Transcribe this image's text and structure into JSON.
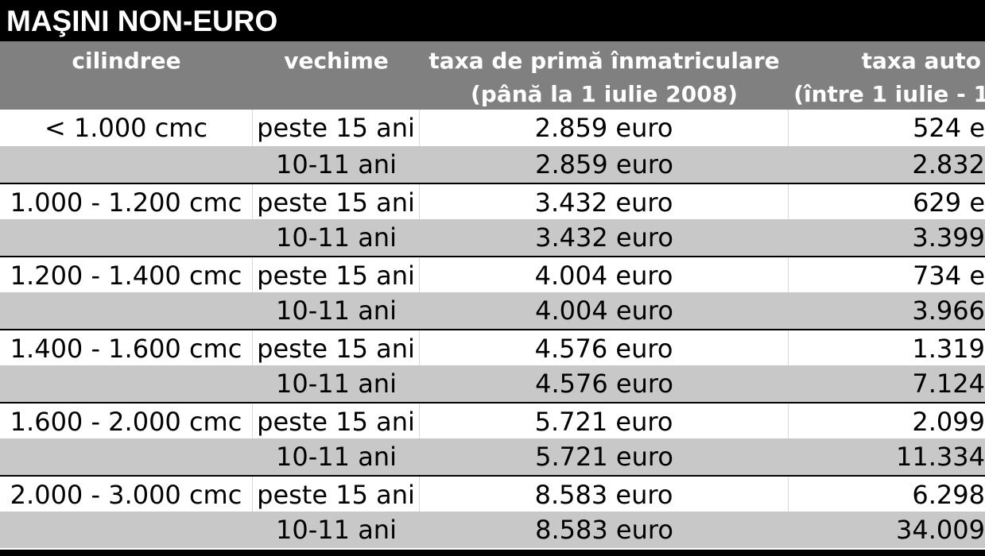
{
  "title": "MAŞINI NON-EURO",
  "headers": [
    {
      "line1": "cilindree",
      "line2": ""
    },
    {
      "line1": "vechime",
      "line2": ""
    },
    {
      "line1": "taxa de primă înmatriculare",
      "line2": "(până la 1 iulie 2008)"
    },
    {
      "line1": "taxa auto",
      "line2": "(între 1 iulie - 1"
    }
  ],
  "rows": [
    {
      "cilindree": "< 1.000 cmc",
      "vechime": "peste 15 ani",
      "taxa1": "2.859 euro",
      "taxa2": "524 e"
    },
    {
      "cilindree": "",
      "vechime": "10-11 ani",
      "taxa1": "2.859 euro",
      "taxa2": "2.832"
    },
    {
      "cilindree": "1.000 - 1.200 cmc",
      "vechime": "peste 15 ani",
      "taxa1": "3.432 euro",
      "taxa2": "629 e"
    },
    {
      "cilindree": "",
      "vechime": "10-11 ani",
      "taxa1": "3.432 euro",
      "taxa2": "3.399"
    },
    {
      "cilindree": "1.200 - 1.400 cmc",
      "vechime": "peste 15 ani",
      "taxa1": "4.004 euro",
      "taxa2": "734 e"
    },
    {
      "cilindree": "",
      "vechime": "10-11 ani",
      "taxa1": "4.004 euro",
      "taxa2": "3.966"
    },
    {
      "cilindree": "1.400 - 1.600 cmc",
      "vechime": "peste 15 ani",
      "taxa1": "4.576 euro",
      "taxa2": "1.319"
    },
    {
      "cilindree": "",
      "vechime": "10-11 ani",
      "taxa1": "4.576 euro",
      "taxa2": "7.124"
    },
    {
      "cilindree": "1.600 - 2.000 cmc",
      "vechime": "peste 15 ani",
      "taxa1": "5.721 euro",
      "taxa2": "2.099"
    },
    {
      "cilindree": "",
      "vechime": "10-11 ani",
      "taxa1": "5.721 euro",
      "taxa2": "11.334"
    },
    {
      "cilindree": "2.000 - 3.000 cmc",
      "vechime": "peste 15 ani",
      "taxa1": "8.583 euro",
      "taxa2": "6.298"
    },
    {
      "cilindree": "",
      "vechime": "10-11 ani",
      "taxa1": "8.583 euro",
      "taxa2": "34.009"
    }
  ]
}
